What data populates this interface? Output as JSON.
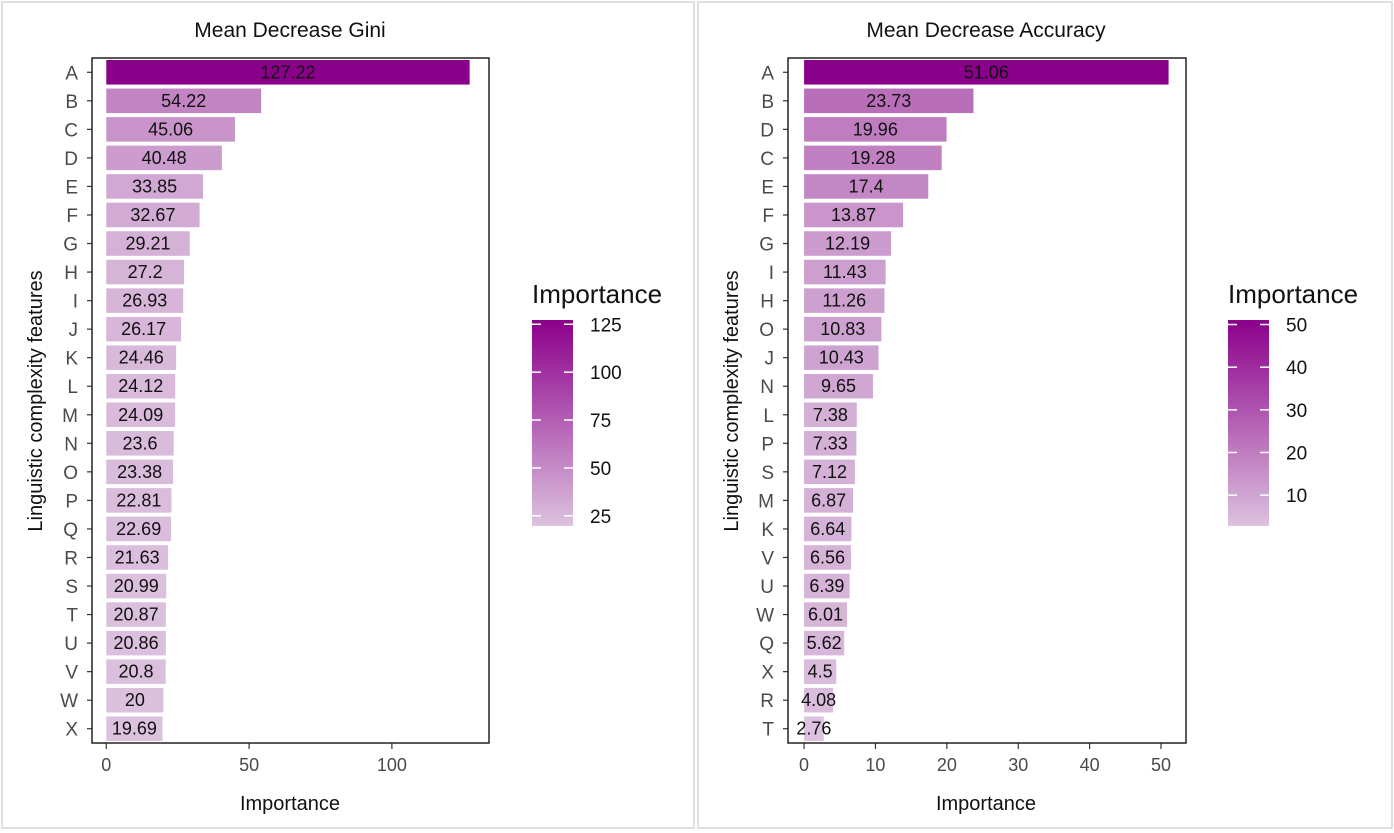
{
  "chart_data": [
    {
      "type": "bar",
      "orientation": "horizontal",
      "title": "Mean Decrease Gini",
      "xlabel": "Importance",
      "ylabel": "Linguistic complexity features",
      "categories": [
        "A",
        "B",
        "C",
        "D",
        "E",
        "F",
        "G",
        "H",
        "I",
        "J",
        "K",
        "L",
        "M",
        "N",
        "O",
        "P",
        "Q",
        "R",
        "S",
        "T",
        "U",
        "V",
        "W",
        "X"
      ],
      "values": [
        127.22,
        54.22,
        45.06,
        40.48,
        33.85,
        32.67,
        29.21,
        27.2,
        26.93,
        26.17,
        24.46,
        24.12,
        24.09,
        23.6,
        23.38,
        22.81,
        22.69,
        21.63,
        20.99,
        20.87,
        20.86,
        20.8,
        20,
        19.69
      ],
      "data_labels": [
        "127.22",
        "54.22",
        "45.06",
        "40.48",
        "33.85",
        "32.67",
        "29.21",
        "27.2",
        "26.93",
        "26.17",
        "24.46",
        "24.12",
        "24.09",
        "23.6",
        "23.38",
        "22.81",
        "22.69",
        "21.63",
        "20.99",
        "20.87",
        "20.86",
        "20.8",
        "20",
        "19.69"
      ],
      "xlim": [
        -5,
        134
      ],
      "xticks": [
        0,
        50,
        100
      ],
      "xtick_labels": [
        "0",
        "50",
        "100"
      ],
      "grid": false,
      "legend": {
        "title": "Importance",
        "placement": "right",
        "range": [
          19.69,
          127.22
        ],
        "ticks": [
          25,
          50,
          75,
          100,
          125
        ],
        "tick_labels": [
          "25",
          "50",
          "75",
          "100",
          "125"
        ],
        "low_color": "#dcc2de",
        "high_color": "#8b008b"
      }
    },
    {
      "type": "bar",
      "orientation": "horizontal",
      "title": "Mean Decrease Accuracy",
      "xlabel": "Importance",
      "ylabel": "Linguistic complexity features",
      "categories": [
        "A",
        "B",
        "D",
        "C",
        "E",
        "F",
        "G",
        "I",
        "H",
        "O",
        "J",
        "N",
        "L",
        "P",
        "S",
        "M",
        "K",
        "V",
        "U",
        "W",
        "Q",
        "X",
        "R",
        "T"
      ],
      "values": [
        51.06,
        23.73,
        19.96,
        19.28,
        17.4,
        13.87,
        12.19,
        11.43,
        11.26,
        10.83,
        10.43,
        9.65,
        7.38,
        7.33,
        7.12,
        6.87,
        6.64,
        6.56,
        6.39,
        6.01,
        5.62,
        4.5,
        4.08,
        2.76
      ],
      "data_labels": [
        "51.06",
        "23.73",
        "19.96",
        "19.28",
        "17.4",
        "13.87",
        "12.19",
        "11.43",
        "11.26",
        "10.83",
        "10.43",
        "9.65",
        "7.38",
        "7.33",
        "7.12",
        "6.87",
        "6.64",
        "6.56",
        "6.39",
        "6.01",
        "5.62",
        "4.5",
        "4.08",
        "2.76"
      ],
      "xlim": [
        -2.25,
        53.5
      ],
      "xticks": [
        0,
        10,
        20,
        30,
        40,
        50
      ],
      "xtick_labels": [
        "0",
        "10",
        "20",
        "30",
        "40",
        "50"
      ],
      "grid": false,
      "legend": {
        "title": "Importance",
        "placement": "right",
        "range": [
          2.76,
          51.06
        ],
        "ticks": [
          10,
          20,
          30,
          40,
          50
        ],
        "tick_labels": [
          "10",
          "20",
          "30",
          "40",
          "50"
        ],
        "low_color": "#dcc2de",
        "high_color": "#8b008b"
      }
    }
  ]
}
